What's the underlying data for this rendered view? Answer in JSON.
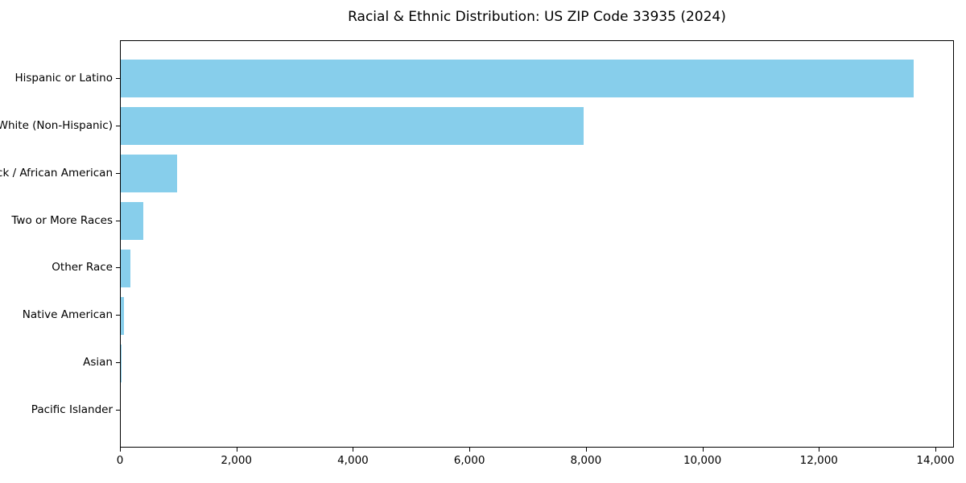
{
  "figure": {
    "background": "#ffffff",
    "text_color": "#000000"
  },
  "chart_data": {
    "type": "bar",
    "orientation": "horizontal",
    "title": "Racial & Ethnic Distribution: US ZIP Code 33935 (2024)",
    "categories": [
      "Hispanic or Latino",
      "White (Non-Hispanic)",
      "Black / African American",
      "Two or More Races",
      "Other Race",
      "Native American",
      "Asian",
      "Pacific Islander"
    ],
    "values": [
      13640,
      7960,
      970,
      390,
      160,
      50,
      15,
      0
    ],
    "xlabel": "",
    "ylabel": "",
    "xlim": [
      0,
      14318
    ],
    "xticks": [
      0,
      2000,
      4000,
      6000,
      8000,
      10000,
      12000,
      14000
    ],
    "xtick_labels": [
      "0",
      "2,000",
      "4,000",
      "6,000",
      "8,000",
      "10,000",
      "12,000",
      "14,000"
    ],
    "bar_color": "#87CEEB",
    "grid": false,
    "legend": null
  }
}
